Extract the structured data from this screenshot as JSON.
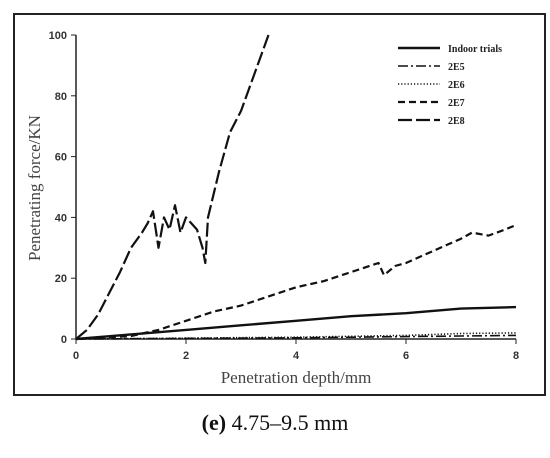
{
  "caption": {
    "panel": "(e)",
    "text": "4.75–9.5 mm"
  },
  "chart_data": {
    "type": "line",
    "title": "",
    "xlabel": "Penetration depth/mm",
    "ylabel": "Penetrating force/KN",
    "xlim": [
      0,
      8
    ],
    "ylim": [
      0,
      100
    ],
    "xticks": [
      "0",
      "2",
      "4",
      "6",
      "8"
    ],
    "yticks": [
      "0",
      "20",
      "40",
      "60",
      "80",
      "100"
    ],
    "grid": false,
    "legend_position": "top-right",
    "series": [
      {
        "name": "Indoor trials",
        "style": "solid",
        "x": [
          0,
          1,
          2,
          3,
          4,
          5,
          6,
          7,
          8
        ],
        "y": [
          0,
          1.5,
          3,
          4.5,
          6,
          7.5,
          8.5,
          10,
          10.5
        ]
      },
      {
        "name": "2E5",
        "style": "dash-dot",
        "x": [
          0,
          2,
          4,
          6,
          7,
          8
        ],
        "y": [
          0,
          0.2,
          0.4,
          0.8,
          1.0,
          1.2
        ]
      },
      {
        "name": "2E6",
        "style": "dotted",
        "x": [
          0,
          2,
          4,
          6,
          7,
          8
        ],
        "y": [
          0,
          0.3,
          0.6,
          1.2,
          1.8,
          2.0
        ]
      },
      {
        "name": "2E7",
        "style": "dashed",
        "x": [
          0,
          1,
          1.5,
          2,
          2.5,
          3,
          3.5,
          4,
          4.5,
          5,
          5.5,
          5.6,
          5.8,
          6,
          6.5,
          7,
          7.2,
          7.5,
          7.8,
          8
        ],
        "y": [
          0,
          1,
          3,
          6,
          9,
          11,
          14,
          17,
          19,
          22,
          25,
          21,
          24,
          25,
          29,
          33,
          35,
          34,
          36,
          37.5
        ]
      },
      {
        "name": "2E8",
        "style": "long-dash",
        "x": [
          0,
          0.2,
          0.4,
          0.6,
          0.8,
          1.0,
          1.2,
          1.3,
          1.4,
          1.5,
          1.6,
          1.7,
          1.8,
          1.9,
          2.0,
          2.1,
          2.2,
          2.3,
          2.35,
          2.4,
          2.6,
          2.8,
          3.0,
          3.2,
          3.4,
          3.5
        ],
        "y": [
          0,
          3,
          8,
          15,
          22,
          30,
          35,
          38,
          42,
          30,
          40,
          36,
          44,
          35,
          40,
          38,
          36,
          30,
          25,
          40,
          55,
          68,
          75,
          85,
          95,
          100
        ]
      }
    ]
  },
  "colors": {
    "line": "#111111",
    "axis": "#222222",
    "frame": "#222222"
  }
}
